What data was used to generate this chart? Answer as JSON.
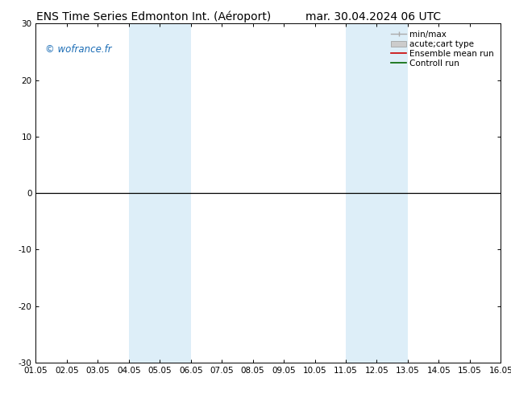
{
  "title_left": "ENS Time Series Edmonton Int. (Aéroport)",
  "title_right": "mar. 30.04.2024 06 UTC",
  "ylim": [
    -30,
    30
  ],
  "yticks": [
    -30,
    -20,
    -10,
    0,
    10,
    20,
    30
  ],
  "xtick_labels": [
    "01.05",
    "02.05",
    "03.05",
    "04.05",
    "05.05",
    "06.05",
    "07.05",
    "08.05",
    "09.05",
    "10.05",
    "11.05",
    "12.05",
    "13.05",
    "14.05",
    "15.05",
    "16.05"
  ],
  "shade_bands": [
    {
      "xstart": 3,
      "xend": 4
    },
    {
      "xstart": 4,
      "xend": 5
    },
    {
      "xstart": 10,
      "xend": 11
    },
    {
      "xstart": 11,
      "xend": 12
    }
  ],
  "shade_color": "#ddeef8",
  "zero_line_color": "#000000",
  "watermark": "© wofrance.fr",
  "watermark_color": "#1a6cb5",
  "legend_entries": [
    {
      "label": "min/max",
      "color": "#aaaaaa",
      "type": "hline_caps"
    },
    {
      "label": "acute;cart type",
      "color": "#cccccc",
      "type": "rect"
    },
    {
      "label": "Ensemble mean run",
      "color": "#cc0000",
      "type": "line"
    },
    {
      "label": "Controll run",
      "color": "#006600",
      "type": "line"
    }
  ],
  "bg_color": "#ffffff",
  "title_fontsize": 10,
  "tick_fontsize": 7.5,
  "legend_fontsize": 7.5,
  "watermark_fontsize": 8.5,
  "figsize": [
    6.34,
    4.9
  ],
  "dpi": 100
}
